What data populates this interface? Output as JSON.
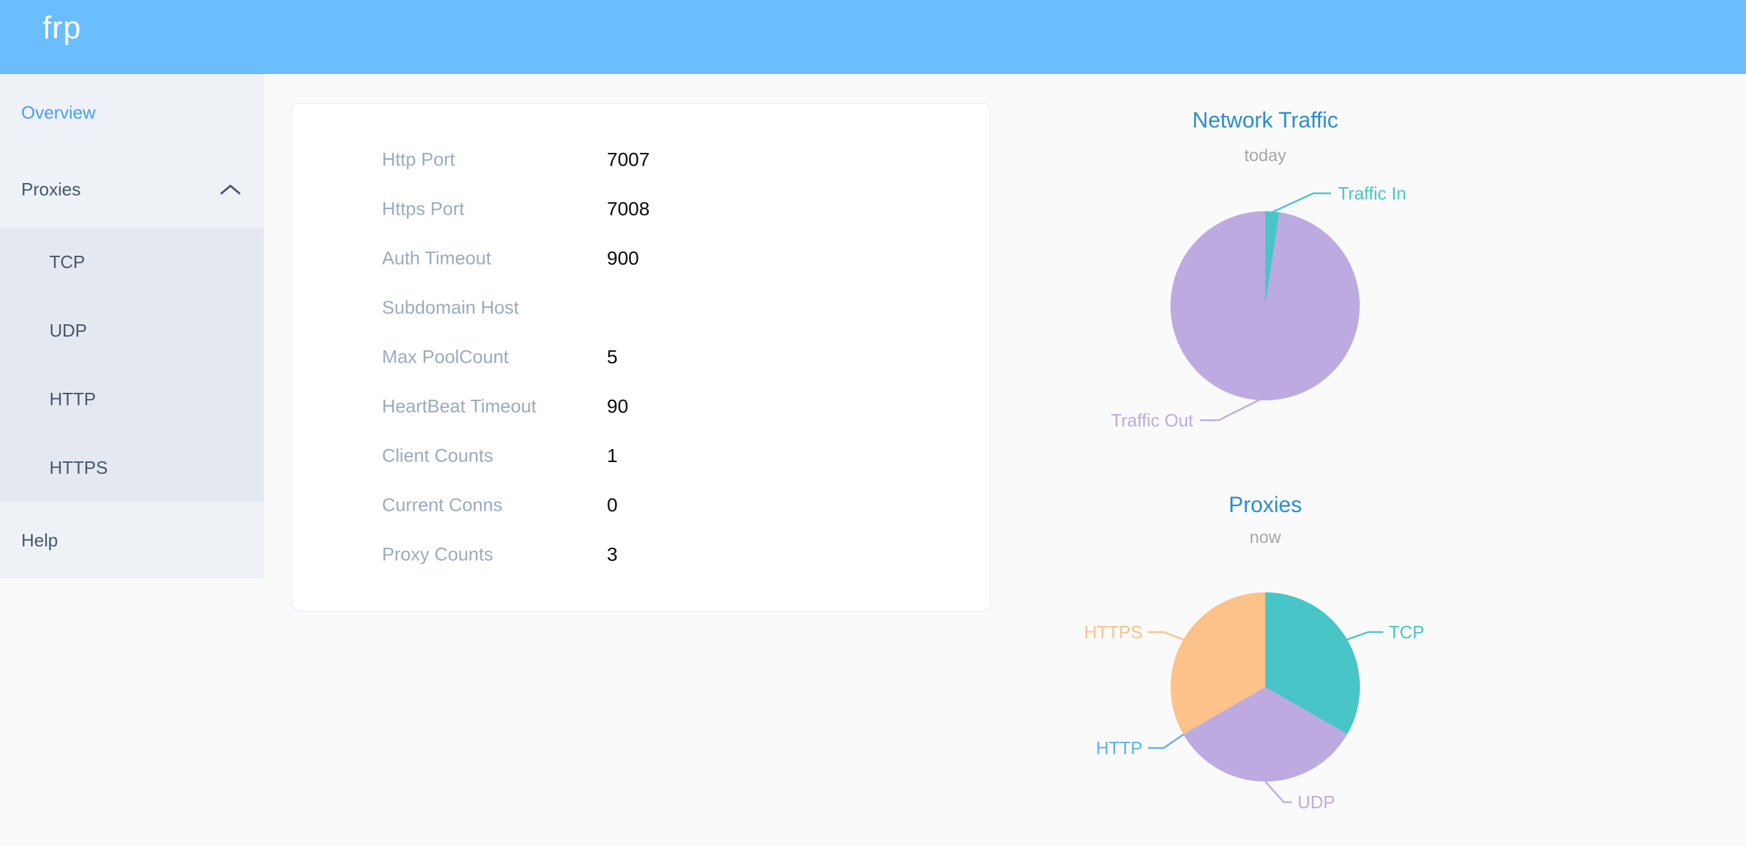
{
  "app": {
    "logo_text": "frp"
  },
  "sidebar": {
    "items": [
      {
        "label": "Overview",
        "active": true
      },
      {
        "label": "Proxies",
        "active": false,
        "expanded": true,
        "children": [
          {
            "label": "TCP"
          },
          {
            "label": "UDP"
          },
          {
            "label": "HTTP"
          },
          {
            "label": "HTTPS"
          }
        ]
      },
      {
        "label": "Help",
        "active": false
      }
    ]
  },
  "server_info": {
    "rows": [
      {
        "label": "Http Port",
        "value": "7007"
      },
      {
        "label": "Https Port",
        "value": "7008"
      },
      {
        "label": "Auth Timeout",
        "value": "900"
      },
      {
        "label": "Subdomain Host",
        "value": ""
      },
      {
        "label": "Max PoolCount",
        "value": "5"
      },
      {
        "label": "HeartBeat Timeout",
        "value": "90"
      },
      {
        "label": "Client Counts",
        "value": "1"
      },
      {
        "label": "Current Conns",
        "value": "0"
      },
      {
        "label": "Proxy Counts",
        "value": "3"
      }
    ]
  },
  "chart_data": [
    {
      "type": "pie",
      "title": "Network Traffic",
      "subtitle": "today",
      "legend_position": "none",
      "slices": [
        {
          "name": "Traffic In",
          "percent": 2.4,
          "color": "#48c5c6"
        },
        {
          "name": "Traffic Out",
          "percent": 97.6,
          "color": "#bcaae0"
        }
      ]
    },
    {
      "type": "pie",
      "title": "Proxies",
      "subtitle": "now",
      "legend_position": "none",
      "slices": [
        {
          "name": "TCP",
          "value": 1,
          "color": "#48c5c6"
        },
        {
          "name": "UDP",
          "value": 1,
          "color": "#bcaae0"
        },
        {
          "name": "HTTP",
          "value": 0,
          "color": "#5ab1ef"
        },
        {
          "name": "HTTPS",
          "value": 1,
          "color": "#fbc28a"
        }
      ]
    }
  ],
  "colors": {
    "header_bg": "#6abdfe",
    "sidebar_bg": "#eef1f6",
    "submenu_bg": "#e4e8f1",
    "menu_text": "#48576a",
    "active_menu_text": "#489ef6",
    "chart_title": "#2b8dd4",
    "chart_subtitle": "#a6a6a6",
    "card_label": "#9aaabf",
    "card_value": "#0a0a0a",
    "card_border": "#e4e9f5",
    "card_bg": "#ffffff",
    "page_bg": "#fafafa"
  }
}
